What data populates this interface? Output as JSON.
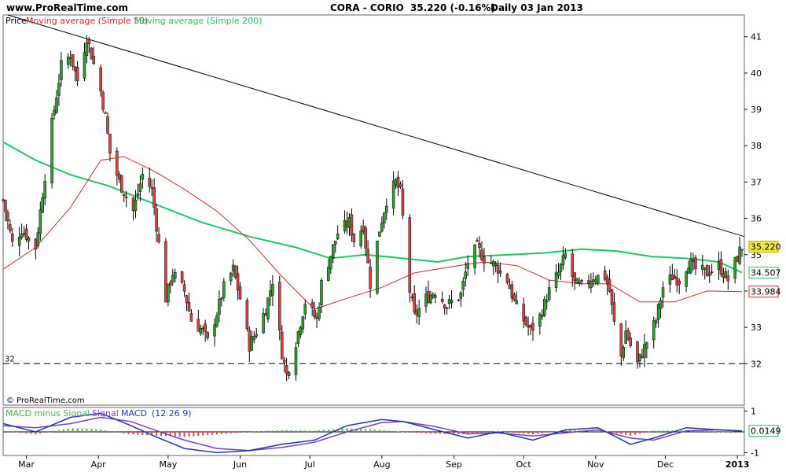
{
  "header": {
    "site": "www.ProRealTime.com",
    "symbol": "CORA - CORIO",
    "quote": "35.220 (-0.16%)",
    "period": "Daily  03 Jan 2013"
  },
  "legend": {
    "price": "Price",
    "ma50": "Moving average (Simple 50)",
    "ma200": "Moving average (Simple 200)"
  },
  "macd_legend": {
    "a": "MACD minus Signal",
    "b": "Signal",
    "c": "MACD",
    "params": "(12 26 9)"
  },
  "copyright": "© ProRealTime.com",
  "colors": {
    "bull": "#2ca02c",
    "bear": "#d64545",
    "ma50": "#d62728",
    "ma200": "#22c55e",
    "trend": "#000000",
    "macd": "#1f3aa8",
    "signal": "#7a3fbf",
    "hist_pos": "#4caf50",
    "hist_neg": "#d64545",
    "fill_pos": "#c8f0c8",
    "fill_neg": "#f5c0c0",
    "last_price_bg": "#f5e642"
  },
  "chart_data": [
    {
      "type": "candlestick",
      "x_range": [
        "2012-02-20",
        "2013-01-04"
      ],
      "ylim": [
        31.4,
        41.6
      ],
      "y_ticks": [
        "32",
        "33",
        "34",
        "35",
        "36",
        "37",
        "38",
        "39",
        "40",
        "41"
      ],
      "x_ticks": [
        "Mar",
        "Apr",
        "May",
        "Jun",
        "Jul",
        "Aug",
        "Sep",
        "Oct",
        "Nov",
        "Dec",
        "2013"
      ],
      "support_line": {
        "value": 32.0,
        "label": "32"
      },
      "trendline": {
        "from": [
          "2012-02-22",
          41.6
        ],
        "to": [
          "2013-01-04",
          35.5
        ]
      },
      "last_labels": [
        {
          "value": "35.220",
          "series": "price"
        },
        {
          "value": "34.507",
          "series": "ma200"
        },
        {
          "value": "33.984",
          "series": "ma50"
        }
      ],
      "price_path": [
        [
          "2012-02-20",
          36.5
        ],
        [
          "2012-02-24",
          35.3
        ],
        [
          "2012-02-28",
          35.7
        ],
        [
          "2012-03-05",
          35.2
        ],
        [
          "2012-03-08",
          36.7
        ],
        [
          "2012-03-12",
          38.6
        ],
        [
          "2012-03-16",
          40.2
        ],
        [
          "2012-03-20",
          40.5
        ],
        [
          "2012-03-23",
          39.8
        ],
        [
          "2012-03-27",
          41.0
        ],
        [
          "2012-04-02",
          39.5
        ],
        [
          "2012-04-04",
          38.8
        ],
        [
          "2012-04-06",
          37.8
        ],
        [
          "2012-04-10",
          37.0
        ],
        [
          "2012-04-16",
          36.2
        ],
        [
          "2012-04-20",
          37.2
        ],
        [
          "2012-04-24",
          36.8
        ],
        [
          "2012-04-30",
          33.8
        ],
        [
          "2012-05-03",
          34.5
        ],
        [
          "2012-05-08",
          34.0
        ],
        [
          "2012-05-11",
          33.2
        ],
        [
          "2012-05-16",
          32.9
        ],
        [
          "2012-05-18",
          32.6
        ],
        [
          "2012-05-22",
          33.4
        ],
        [
          "2012-05-25",
          34.1
        ],
        [
          "2012-05-29",
          34.6
        ],
        [
          "2012-06-01",
          33.8
        ],
        [
          "2012-06-05",
          32.5
        ],
        [
          "2012-06-08",
          32.9
        ],
        [
          "2012-06-12",
          33.5
        ],
        [
          "2012-06-15",
          34.3
        ],
        [
          "2012-06-19",
          32.3
        ],
        [
          "2012-06-21",
          31.7
        ],
        [
          "2012-06-25",
          32.6
        ],
        [
          "2012-06-29",
          33.7
        ],
        [
          "2012-07-04",
          33.2
        ],
        [
          "2012-07-06",
          34.2
        ],
        [
          "2012-07-10",
          35.0
        ],
        [
          "2012-07-13",
          35.6
        ],
        [
          "2012-07-18",
          35.9
        ],
        [
          "2012-07-20",
          35.4
        ],
        [
          "2012-07-24",
          35.8
        ],
        [
          "2012-07-27",
          34.2
        ],
        [
          "2012-07-31",
          35.7
        ],
        [
          "2012-08-03",
          36.5
        ],
        [
          "2012-08-07",
          37.0
        ],
        [
          "2012-08-09",
          36.7
        ],
        [
          "2012-08-13",
          34.0
        ],
        [
          "2012-08-15",
          33.3
        ],
        [
          "2012-08-20",
          33.8
        ],
        [
          "2012-08-24",
          34.0
        ],
        [
          "2012-08-29",
          33.6
        ],
        [
          "2012-09-04",
          33.9
        ],
        [
          "2012-09-07",
          34.8
        ],
        [
          "2012-09-11",
          35.2
        ],
        [
          "2012-09-14",
          34.9
        ],
        [
          "2012-09-19",
          34.7
        ],
        [
          "2012-09-24",
          34.3
        ],
        [
          "2012-09-27",
          33.7
        ],
        [
          "2012-10-01",
          33.2
        ],
        [
          "2012-10-04",
          32.9
        ],
        [
          "2012-10-08",
          33.3
        ],
        [
          "2012-10-12",
          34.0
        ],
        [
          "2012-10-16",
          34.5
        ],
        [
          "2012-10-19",
          35.0
        ],
        [
          "2012-10-23",
          34.2
        ],
        [
          "2012-10-26",
          34.1
        ],
        [
          "2012-10-31",
          34.4
        ],
        [
          "2012-11-05",
          34.4
        ],
        [
          "2012-11-07",
          34.0
        ],
        [
          "2012-11-09",
          33.1
        ],
        [
          "2012-11-12",
          32.2
        ],
        [
          "2012-11-14",
          32.9
        ],
        [
          "2012-11-16",
          32.5
        ],
        [
          "2012-11-19",
          32.0
        ],
        [
          "2012-11-23",
          32.6
        ],
        [
          "2012-11-27",
          33.2
        ],
        [
          "2012-11-30",
          34.1
        ],
        [
          "2012-12-04",
          34.4
        ],
        [
          "2012-12-07",
          34.3
        ],
        [
          "2012-12-11",
          34.8
        ],
        [
          "2012-12-14",
          34.6
        ],
        [
          "2012-12-19",
          34.5
        ],
        [
          "2012-12-24",
          34.7
        ],
        [
          "2012-12-28",
          34.3
        ],
        [
          "2013-01-02",
          35.1
        ],
        [
          "2013-01-03",
          35.22
        ]
      ],
      "ma50": [
        [
          "2012-02-20",
          34.6
        ],
        [
          "2012-03-05",
          35.2
        ],
        [
          "2012-03-20",
          36.3
        ],
        [
          "2012-04-02",
          37.6
        ],
        [
          "2012-04-12",
          37.7
        ],
        [
          "2012-04-25",
          37.3
        ],
        [
          "2012-05-08",
          36.8
        ],
        [
          "2012-05-22",
          36.2
        ],
        [
          "2012-06-05",
          35.4
        ],
        [
          "2012-06-19",
          34.4
        ],
        [
          "2012-07-03",
          33.5
        ],
        [
          "2012-07-17",
          33.8
        ],
        [
          "2012-08-01",
          34.1
        ],
        [
          "2012-08-15",
          34.5
        ],
        [
          "2012-09-03",
          34.7
        ],
        [
          "2012-09-14",
          34.8
        ],
        [
          "2012-09-28",
          34.7
        ],
        [
          "2012-10-12",
          34.3
        ],
        [
          "2012-10-26",
          34.2
        ],
        [
          "2012-11-07",
          34.2
        ],
        [
          "2012-11-20",
          33.7
        ],
        [
          "2012-12-05",
          33.7
        ],
        [
          "2012-12-19",
          34.0
        ],
        [
          "2013-01-03",
          33.984
        ]
      ],
      "ma200": [
        [
          "2012-02-20",
          38.1
        ],
        [
          "2012-03-05",
          37.6
        ],
        [
          "2012-03-20",
          37.2
        ],
        [
          "2012-04-05",
          36.9
        ],
        [
          "2012-04-25",
          36.4
        ],
        [
          "2012-05-15",
          35.9
        ],
        [
          "2012-06-05",
          35.5
        ],
        [
          "2012-06-25",
          35.2
        ],
        [
          "2012-07-10",
          34.9
        ],
        [
          "2012-07-25",
          35.0
        ],
        [
          "2012-08-10",
          34.9
        ],
        [
          "2012-08-25",
          34.8
        ],
        [
          "2012-09-07",
          34.95
        ],
        [
          "2012-09-25",
          35.0
        ],
        [
          "2012-10-10",
          35.05
        ],
        [
          "2012-10-26",
          35.15
        ],
        [
          "2012-11-10",
          35.1
        ],
        [
          "2012-11-25",
          34.95
        ],
        [
          "2012-12-10",
          34.9
        ],
        [
          "2012-12-24",
          34.8
        ],
        [
          "2013-01-03",
          34.507
        ]
      ]
    },
    {
      "type": "macd",
      "ylim": [
        -1.1,
        1.1
      ],
      "y_ticks": [
        "1",
        "-1"
      ],
      "zero_line": 0,
      "last_value": "0.0149",
      "macd": [
        [
          "2012-02-20",
          0.4
        ],
        [
          "2012-03-05",
          0.0
        ],
        [
          "2012-03-20",
          0.7
        ],
        [
          "2012-04-02",
          0.9
        ],
        [
          "2012-04-15",
          0.3
        ],
        [
          "2012-04-25",
          -0.2
        ],
        [
          "2012-05-08",
          -0.8
        ],
        [
          "2012-05-22",
          -1.0
        ],
        [
          "2012-06-05",
          -0.9
        ],
        [
          "2012-06-19",
          -0.6
        ],
        [
          "2012-07-03",
          -0.4
        ],
        [
          "2012-07-17",
          0.3
        ],
        [
          "2012-08-01",
          0.6
        ],
        [
          "2012-08-10",
          0.5
        ],
        [
          "2012-08-24",
          0.1
        ],
        [
          "2012-09-07",
          -0.3
        ],
        [
          "2012-09-20",
          0.0
        ],
        [
          "2012-10-05",
          -0.4
        ],
        [
          "2012-10-19",
          0.1
        ],
        [
          "2012-11-02",
          0.2
        ],
        [
          "2012-11-16",
          -0.6
        ],
        [
          "2012-11-26",
          -0.3
        ],
        [
          "2012-12-10",
          0.2
        ],
        [
          "2012-12-24",
          0.1
        ],
        [
          "2013-01-03",
          0.05
        ]
      ],
      "signal": [
        [
          "2012-02-20",
          0.3
        ],
        [
          "2012-03-05",
          0.2
        ],
        [
          "2012-03-20",
          0.4
        ],
        [
          "2012-04-02",
          0.7
        ],
        [
          "2012-04-15",
          0.5
        ],
        [
          "2012-04-25",
          0.1
        ],
        [
          "2012-05-08",
          -0.4
        ],
        [
          "2012-05-22",
          -0.8
        ],
        [
          "2012-06-05",
          -0.9
        ],
        [
          "2012-06-19",
          -0.75
        ],
        [
          "2012-07-03",
          -0.5
        ],
        [
          "2012-07-17",
          0.0
        ],
        [
          "2012-08-01",
          0.45
        ],
        [
          "2012-08-10",
          0.5
        ],
        [
          "2012-08-24",
          0.25
        ],
        [
          "2012-09-07",
          -0.1
        ],
        [
          "2012-09-20",
          -0.05
        ],
        [
          "2012-10-05",
          -0.2
        ],
        [
          "2012-10-19",
          -0.05
        ],
        [
          "2012-11-02",
          0.1
        ],
        [
          "2012-11-16",
          -0.3
        ],
        [
          "2012-11-26",
          -0.4
        ],
        [
          "2012-12-10",
          0.05
        ],
        [
          "2012-12-24",
          0.1
        ],
        [
          "2013-01-03",
          0.035
        ]
      ]
    }
  ]
}
